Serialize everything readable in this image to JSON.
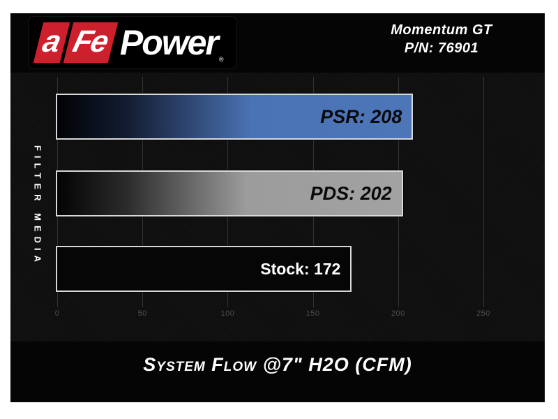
{
  "header": {
    "logo": {
      "segment_a": "a",
      "segment_fe": "Fe",
      "power": "Power",
      "registered_mark": "®"
    },
    "product": {
      "line1": "Momentum GT",
      "line2": "P/N: 76901"
    }
  },
  "chart_data": {
    "type": "bar",
    "orientation": "horizontal",
    "title": "System Flow @7\" H2O (CFM)",
    "axis_label": "FILTER MEDIA",
    "categories": [
      "PSR",
      "PDS",
      "Stock"
    ],
    "values": [
      208,
      202,
      172
    ],
    "bar_labels": [
      "PSR: 208",
      "PDS: 202",
      "Stock: 172"
    ],
    "bar_colors": [
      "#4a73b5",
      "#9e9e9e",
      "#060606"
    ],
    "bar_label_styles": [
      "techno-dark",
      "techno-dark",
      "plain-light"
    ],
    "x_ticks": [
      "0",
      "50",
      "100",
      "150",
      "200",
      "250"
    ],
    "x_tick_values": [
      0,
      50,
      100,
      150,
      200,
      250
    ],
    "xlim": [
      0,
      286
    ],
    "grid": true,
    "legend_position": "none"
  },
  "colors": {
    "page_bg": "#ffffff",
    "canvas_bg": "#050505",
    "logo_red": "#ce1f2d",
    "bar_blue": "#4a73b5",
    "bar_gray": "#9e9e9e",
    "bar_border": "#d9d9d9",
    "grid_line": "#3f3f3f",
    "tick_text": "#4f4f4f",
    "text_white": "#ffffff"
  }
}
